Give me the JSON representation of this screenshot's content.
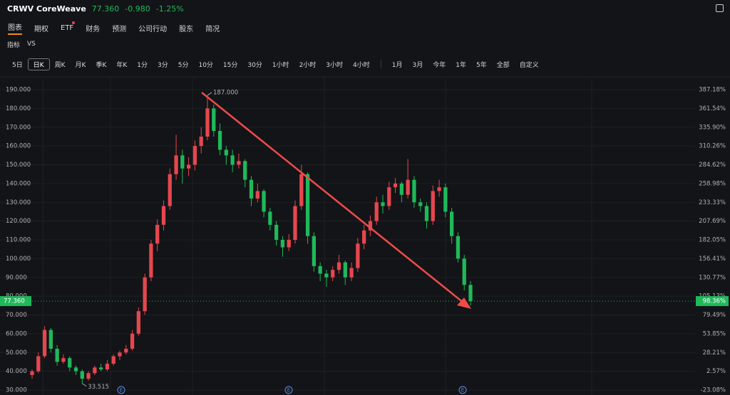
{
  "header": {
    "ticker": "CRWV CoreWeave",
    "price": "77.360",
    "change": "-0.980",
    "change_pct": "-1.25%"
  },
  "tabs": [
    "图表",
    "期权",
    "ETF",
    "财务",
    "预测",
    "公司行动",
    "股东",
    "简况"
  ],
  "tools": [
    "指标",
    "VS"
  ],
  "periods": [
    "5日",
    "日K",
    "周K",
    "月K",
    "季K",
    "年K",
    "1分",
    "3分",
    "5分",
    "10分",
    "15分",
    "30分",
    "1小时",
    "2小时",
    "3小时",
    "4小时"
  ],
  "ranges": [
    "1月",
    "3月",
    "今年",
    "1年",
    "5年",
    "全部",
    "自定义"
  ],
  "chart": {
    "type": "candlestick",
    "ylim": [
      30,
      190
    ],
    "yticks": [
      {
        "value": 190,
        "label": "190.000"
      },
      {
        "value": 180,
        "label": "180.000"
      },
      {
        "value": 170,
        "label": "170.000"
      },
      {
        "value": 160,
        "label": "160.000"
      },
      {
        "value": 150,
        "label": "150.000"
      },
      {
        "value": 140,
        "label": "140.000"
      },
      {
        "value": 130,
        "label": "130.000"
      },
      {
        "value": 120,
        "label": "120.000"
      },
      {
        "value": 110,
        "label": "110.000"
      },
      {
        "value": 100,
        "label": "100.000"
      },
      {
        "value": 90,
        "label": "90.000"
      },
      {
        "value": 80,
        "label": "80.000"
      },
      {
        "value": 70,
        "label": "70.000"
      },
      {
        "value": 60,
        "label": "60.000"
      },
      {
        "value": 50,
        "label": "50.000"
      },
      {
        "value": 40,
        "label": "40.000"
      },
      {
        "value": 30,
        "label": "30.000"
      }
    ],
    "y2ticks": [
      {
        "value": 190,
        "label": "387.18%"
      },
      {
        "value": 180,
        "label": "361.54%"
      },
      {
        "value": 170,
        "label": "335.90%"
      },
      {
        "value": 160,
        "label": "310.26%"
      },
      {
        "value": 150,
        "label": "284.62%"
      },
      {
        "value": 140,
        "label": "258.98%"
      },
      {
        "value": 130,
        "label": "233.33%"
      },
      {
        "value": 120,
        "label": "207.69%"
      },
      {
        "value": 110,
        "label": "182.05%"
      },
      {
        "value": 100,
        "label": "156.41%"
      },
      {
        "value": 90,
        "label": "130.77%"
      },
      {
        "value": 80,
        "label": "105.13%"
      },
      {
        "value": 70,
        "label": "79.49%"
      },
      {
        "value": 60,
        "label": "53.85%"
      },
      {
        "value": 50,
        "label": "28.21%"
      },
      {
        "value": 40,
        "label": "2.57%"
      },
      {
        "value": 30,
        "label": "-23.08%"
      }
    ],
    "up_color": "#e5474f",
    "down_color": "#1fb95a",
    "candles": [
      [
        38,
        41,
        36,
        40
      ],
      [
        40,
        50,
        39,
        48
      ],
      [
        48,
        64,
        47,
        62
      ],
      [
        62,
        63,
        50,
        52
      ],
      [
        52,
        54,
        43,
        45
      ],
      [
        45,
        49,
        44,
        47
      ],
      [
        47,
        48,
        40,
        42
      ],
      [
        42,
        43,
        38,
        40
      ],
      [
        40,
        41,
        33.515,
        36
      ],
      [
        36,
        40,
        35,
        39
      ],
      [
        39,
        43,
        38,
        42
      ],
      [
        42,
        44,
        40,
        41
      ],
      [
        41,
        46,
        40,
        44
      ],
      [
        44,
        49,
        43,
        48
      ],
      [
        48,
        51,
        46,
        50
      ],
      [
        50,
        54,
        49,
        52
      ],
      [
        52,
        62,
        51,
        60
      ],
      [
        60,
        74,
        59,
        72
      ],
      [
        72,
        92,
        70,
        90
      ],
      [
        90,
        110,
        88,
        108
      ],
      [
        108,
        121,
        104,
        118
      ],
      [
        118,
        131,
        115,
        128
      ],
      [
        128,
        148,
        126,
        145
      ],
      [
        145,
        166,
        142,
        155
      ],
      [
        155,
        158,
        140,
        148
      ],
      [
        148,
        154,
        144,
        150
      ],
      [
        150,
        163,
        147,
        160
      ],
      [
        160,
        170,
        156,
        165
      ],
      [
        165,
        187,
        163,
        180
      ],
      [
        180,
        182,
        165,
        168
      ],
      [
        168,
        172,
        155,
        158
      ],
      [
        158,
        160,
        150,
        155
      ],
      [
        155,
        158,
        146,
        150
      ],
      [
        150,
        156,
        148,
        152
      ],
      [
        152,
        153,
        138,
        142
      ],
      [
        142,
        144,
        128,
        132
      ],
      [
        132,
        140,
        130,
        136
      ],
      [
        136,
        137,
        122,
        125
      ],
      [
        125,
        127,
        115,
        118
      ],
      [
        118,
        120,
        107,
        110
      ],
      [
        110,
        112,
        101,
        106
      ],
      [
        106,
        113,
        104,
        110
      ],
      [
        110,
        131,
        108,
        128
      ],
      [
        128,
        150,
        126,
        145
      ],
      [
        145,
        146,
        108,
        112
      ],
      [
        112,
        114,
        93,
        96
      ],
      [
        96,
        98,
        88,
        92
      ],
      [
        92,
        94,
        85,
        90
      ],
      [
        90,
        96,
        88,
        94
      ],
      [
        94,
        102,
        92,
        98
      ],
      [
        98,
        99,
        86,
        90
      ],
      [
        90,
        98,
        88,
        95
      ],
      [
        95,
        111,
        93,
        108
      ],
      [
        108,
        118,
        105,
        115
      ],
      [
        115,
        123,
        112,
        120
      ],
      [
        120,
        133,
        118,
        130
      ],
      [
        130,
        134,
        124,
        128
      ],
      [
        128,
        141,
        126,
        138
      ],
      [
        138,
        143,
        135,
        140
      ],
      [
        140,
        141,
        130,
        134
      ],
      [
        134,
        153,
        132,
        142
      ],
      [
        142,
        144,
        127,
        130
      ],
      [
        130,
        132,
        125,
        128
      ],
      [
        128,
        130,
        116,
        120
      ],
      [
        120,
        139,
        118,
        136
      ],
      [
        136,
        142,
        133,
        138
      ],
      [
        138,
        140,
        122,
        125
      ],
      [
        125,
        127,
        108,
        112
      ],
      [
        112,
        114,
        98,
        100
      ],
      [
        100,
        102,
        83,
        86
      ],
      [
        86,
        88,
        75,
        77.36
      ]
    ],
    "max_label": {
      "value": 187,
      "label": "187.000"
    },
    "min_label": 33.515,
    "last": {
      "value": 77.36,
      "label": "77.360",
      "pct": "98.36%"
    },
    "events": [
      "E",
      "E",
      "E"
    ]
  }
}
